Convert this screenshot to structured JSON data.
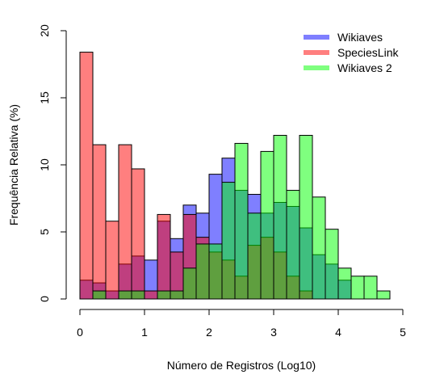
{
  "chart_data": {
    "type": "bar",
    "xlabel": "Número de Registros (Log10)",
    "ylabel": "Frequência Relativa (%)",
    "xlim": [
      0,
      5
    ],
    "ylim": [
      0,
      20
    ],
    "xticks": [
      "0",
      "1",
      "2",
      "3",
      "4",
      "5"
    ],
    "yticks": [
      "0",
      "5",
      "10",
      "15",
      "20"
    ],
    "bin_edges": [
      0.0,
      0.2,
      0.4,
      0.6,
      0.8,
      1.0,
      1.2,
      1.4,
      1.6,
      1.8,
      2.0,
      2.2,
      2.4,
      2.6,
      2.8,
      3.0,
      3.2,
      3.4,
      3.6,
      3.8,
      4.0,
      4.2,
      4.4,
      4.6,
      4.8
    ],
    "legend_position": "top-right",
    "grid": false,
    "series": [
      {
        "name": "Wikiaves",
        "color": "#0000ff",
        "bin_start": 0.0,
        "values": [
          1.4,
          1.2,
          0.6,
          2.6,
          3.2,
          2.9,
          5.8,
          4.5,
          7.0,
          6.4,
          9.3,
          10.5,
          8.1,
          7.8,
          6.4,
          7.2,
          6.9,
          5.3,
          3.3,
          2.6,
          1.4
        ]
      },
      {
        "name": "SpeciesLink",
        "color": "#ff0000",
        "bin_start": 0.0,
        "values": [
          18.4,
          11.5,
          5.8,
          11.5,
          9.7,
          0.6,
          6.3,
          3.5,
          6.3,
          4.6,
          3.5,
          2.9,
          1.7,
          4.0,
          4.6,
          3.5,
          1.7,
          0.6
        ]
      },
      {
        "name": "Wikiaves 2",
        "color": "#00ff00",
        "bin_start": 0.2,
        "values": [
          0.6,
          0.0,
          0.6,
          0.6,
          0.0,
          0.6,
          0.6,
          2.3,
          4.1,
          4.1,
          8.7,
          11.6,
          6.4,
          11.0,
          12.2,
          8.1,
          12.2,
          7.6,
          5.2,
          2.3,
          1.7,
          1.7,
          0.6
        ]
      }
    ]
  }
}
